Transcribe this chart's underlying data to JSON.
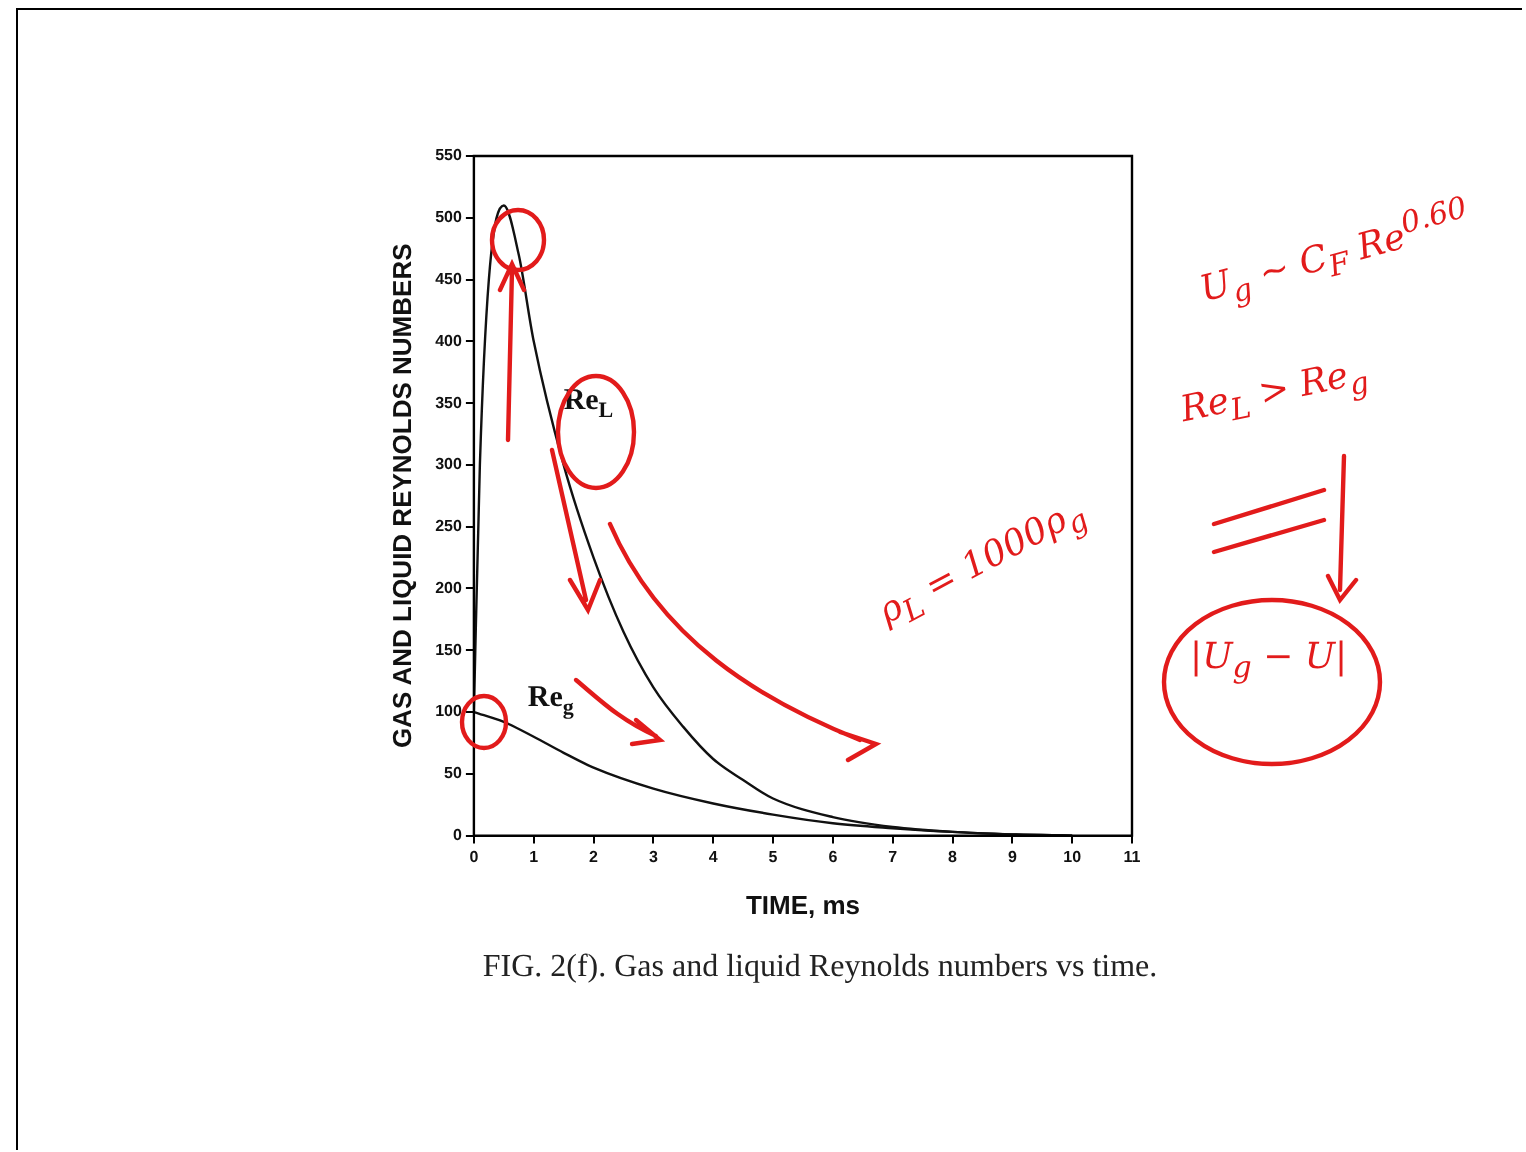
{
  "chart_data": {
    "type": "line",
    "title": "FIG. 2(f). Gas and liquid Reynolds numbers vs time.",
    "xlabel": "TIME, ms",
    "ylabel": "GAS AND LIQUID REYNOLDS NUMBERS",
    "series": [
      {
        "name": "Re$_{L}$",
        "color": "#111111",
        "x": [
          0,
          0.1,
          0.25,
          0.5,
          0.75,
          1,
          1.5,
          2,
          2.5,
          3,
          3.5,
          4,
          4.5,
          5,
          6,
          7,
          8,
          9,
          10
        ],
        "values": [
          100,
          300,
          450,
          510,
          470,
          400,
          300,
          225,
          165,
          120,
          88,
          62,
          45,
          30,
          15,
          7,
          3,
          1,
          0
        ]
      },
      {
        "name": "Re$_{g}$",
        "color": "#111111",
        "x": [
          0,
          0.5,
          1,
          1.5,
          2,
          3,
          4,
          5,
          6,
          7,
          8,
          9,
          10
        ],
        "values": [
          100,
          92,
          80,
          67,
          55,
          38,
          26,
          17,
          10,
          6,
          3,
          1,
          0
        ]
      }
    ],
    "xlim": [
      0,
      11
    ],
    "xticks": [
      0,
      1,
      2,
      3,
      4,
      5,
      6,
      7,
      8,
      9,
      10,
      11
    ],
    "ylim": [
      0,
      550
    ],
    "yticks": [
      0,
      50,
      100,
      150,
      200,
      250,
      300,
      350,
      400,
      450,
      500,
      550
    ],
    "grid": false,
    "legend": false,
    "marker": "none",
    "line_style": "solid",
    "annotations": [
      "ρ$_{L}$ = 1000ρ$_{g}$",
      "U$_{g}$ ~ C$_{F}$ Re$^{0.60}$",
      "Re$_{L}$ > Re$_{g}$",
      "|U$_{g}$ − U|"
    ]
  }
}
